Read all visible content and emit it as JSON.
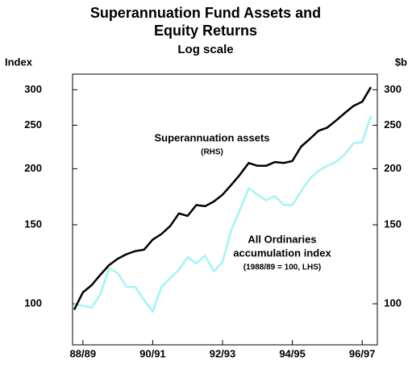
{
  "chart_data": {
    "type": "line",
    "title": "Superannuation Fund Assets and Equity Returns",
    "subtitle": "Log scale",
    "y_label": "Index",
    "y2_label": "$b",
    "yscale": "log",
    "categories": [
      null,
      "88/89",
      null,
      null,
      null,
      null,
      null,
      null,
      null,
      "90/91",
      null,
      null,
      null,
      null,
      null,
      null,
      null,
      "92/93",
      null,
      null,
      null,
      null,
      null,
      null,
      null,
      "94/95",
      null,
      null,
      null,
      null,
      null,
      null,
      null,
      "96/97",
      null
    ],
    "series": [
      {
        "name": "Superannuation assets",
        "note": "(RHS)",
        "axis": "y2",
        "color": "#000000",
        "values": [
          97,
          106,
          110,
          116,
          122,
          126,
          129,
          131,
          132,
          139,
          143,
          149,
          159,
          157,
          166,
          165,
          169,
          175,
          184,
          194,
          206,
          203,
          203,
          207,
          206,
          208,
          224,
          233,
          243,
          247,
          256,
          266,
          276,
          282,
          304
        ]
      },
      {
        "name": "All Ordinaries accumulation index",
        "note": "(1988/89 = 100, LHS)",
        "axis": "y",
        "color": "#a4f4f4",
        "values": [
          100,
          99,
          98,
          105,
          120,
          117,
          109,
          109,
          102,
          96,
          109,
          114,
          119,
          127,
          123,
          128,
          118,
          124,
          146,
          162,
          181,
          175,
          170,
          174,
          166,
          166,
          178,
          190,
          198,
          203,
          207,
          215,
          228,
          229,
          262
        ]
      }
    ],
    "annotations": [
      "Superannuation assets",
      "(RHS)",
      "All Ordinaries",
      "accumulation index",
      "(1988/89 = 100, LHS)"
    ],
    "ylim": [
      81,
      325
    ],
    "yticks": [
      100,
      150,
      200,
      250,
      300
    ],
    "y2lim": [
      81,
      325
    ],
    "y2ticks": [
      100,
      150,
      200,
      250,
      300
    ]
  }
}
